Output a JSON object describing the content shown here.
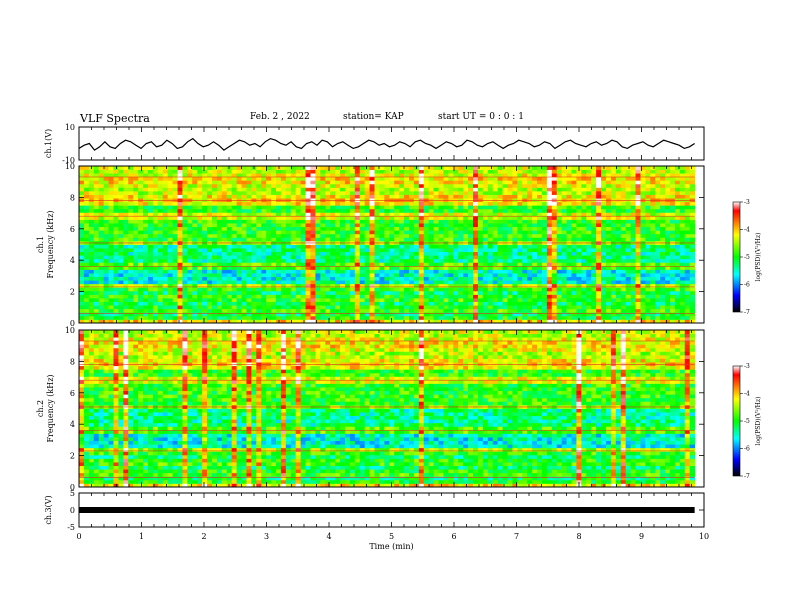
{
  "header": {
    "title": "VLF Spectra",
    "date": "Feb. 2 , 2022",
    "station": "station= KAP",
    "start_ut": "start UT = 0 : 0 : 1"
  },
  "chart_data": [
    {
      "type": "line",
      "ylabel": "ch.1(V)",
      "ylim": [
        -10,
        10
      ],
      "yticks": [
        "10",
        "-10"
      ],
      "xlim": [
        0,
        10
      ],
      "series": [
        {
          "values": [
            -3,
            -1,
            0,
            -4,
            -2,
            1,
            -2,
            -3,
            0,
            2,
            1,
            -1,
            -3,
            0,
            1,
            -2,
            -1,
            2,
            0,
            -3,
            -2,
            1,
            3,
            0,
            -2,
            -1,
            1,
            -1,
            -4,
            -2,
            0,
            2,
            1,
            -1,
            0,
            -2,
            1,
            3,
            2,
            0,
            -1,
            1,
            -2,
            -3,
            0,
            1,
            -1,
            2,
            1,
            -2,
            0,
            1,
            -1,
            -3,
            -2,
            0,
            2,
            1,
            -1,
            0,
            -2,
            -1,
            1,
            0,
            -2,
            1,
            2,
            0,
            -1,
            -3,
            -1,
            1,
            0,
            -2,
            -1,
            2,
            1,
            -1,
            -2,
            0,
            1,
            -1,
            -3,
            -1,
            0,
            2,
            1,
            0,
            -2,
            -1,
            1,
            0,
            -3,
            -1,
            1,
            2,
            0,
            -1,
            -2,
            0,
            1,
            -1,
            0,
            2,
            1,
            -2,
            -3,
            -1,
            0,
            1,
            -1,
            -2,
            0,
            2,
            1,
            0,
            -1,
            -3,
            -2,
            0
          ]
        }
      ]
    },
    {
      "type": "heatmap",
      "ylabel": "ch.1 Frequency (kHz)",
      "ylim": [
        0,
        10
      ],
      "yticks": [
        "0",
        "2",
        "4",
        "6",
        "8",
        "10"
      ],
      "xlim": [
        0,
        10
      ],
      "colorbar": {
        "label": "log(PSD)(V²/Hz)",
        "ticks": [
          "-3",
          "-4",
          "-5",
          "-6",
          "-7"
        ],
        "range": [
          -7,
          -3
        ]
      }
    },
    {
      "type": "heatmap",
      "ylabel": "ch.2 Frequency (kHz)",
      "ylim": [
        0,
        10
      ],
      "yticks": [
        "0",
        "2",
        "4",
        "6",
        "8",
        "10"
      ],
      "xlim": [
        0,
        10
      ],
      "colorbar": {
        "label": "log(PSD)(V²/Hz)",
        "ticks": [
          "-3",
          "-4",
          "-5",
          "-6",
          "-7"
        ],
        "range": [
          -7,
          -3
        ]
      }
    },
    {
      "type": "line",
      "ylabel": "ch.3(V)",
      "ylim": [
        -5,
        5
      ],
      "yticks": [
        "5",
        "0",
        "-5"
      ],
      "xlim": [
        0,
        10
      ],
      "xticks": [
        "0",
        "1",
        "2",
        "3",
        "4",
        "5",
        "6",
        "7",
        "8",
        "9",
        "10"
      ],
      "xlabel": "Time (min)",
      "series": [
        {
          "values": [
            0,
            0
          ]
        }
      ]
    }
  ]
}
